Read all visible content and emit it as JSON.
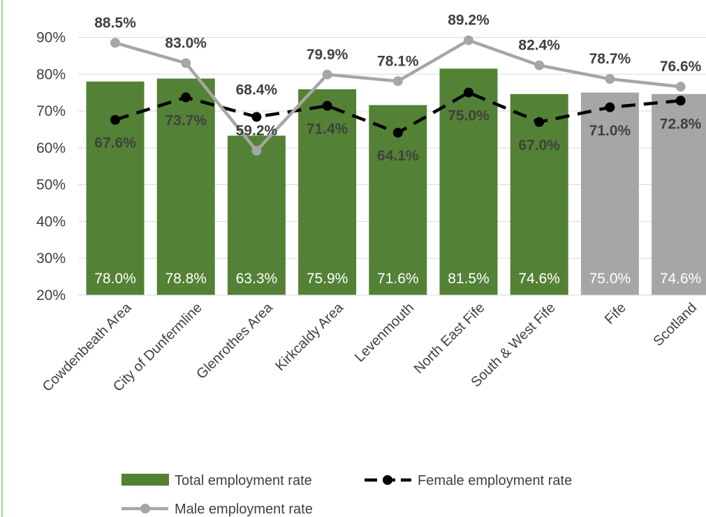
{
  "chart_data": {
    "type": "bar",
    "categories": [
      "Cowdenbeath Area",
      "City of Dunfermline",
      "Glenrothes Area",
      "Kirkcaldy Area",
      "Levenmouth",
      "North East Fife",
      "South & West Fife",
      "Fife",
      "Scotland"
    ],
    "series": [
      {
        "name": "Total employment rate",
        "kind": "bar",
        "values": [
          78.0,
          78.8,
          63.3,
          75.9,
          71.6,
          81.5,
          74.6,
          75.0,
          74.6
        ],
        "labels": [
          "78.0%",
          "78.8%",
          "63.3%",
          "75.9%",
          "71.6%",
          "81.5%",
          "74.6%",
          "75.0%",
          "74.6%"
        ],
        "colors": [
          "#538135",
          "#538135",
          "#538135",
          "#538135",
          "#538135",
          "#538135",
          "#538135",
          "#a6a6a6",
          "#a6a6a6"
        ]
      },
      {
        "name": "Female employment rate",
        "kind": "line",
        "style": "dashed",
        "color": "#000000",
        "values": [
          67.6,
          73.7,
          68.4,
          71.4,
          64.1,
          75.0,
          67.0,
          71.0,
          72.8
        ],
        "labels": [
          "67.6%",
          "73.7%",
          "68.4%",
          "71.4%",
          "64.1%",
          "75.0%",
          "67.0%",
          "71.0%",
          "72.8%"
        ]
      },
      {
        "name": "Male employment rate",
        "kind": "line",
        "style": "solid",
        "color": "#a6a6a6",
        "values": [
          88.5,
          83.0,
          59.2,
          79.9,
          78.1,
          89.2,
          82.4,
          78.7,
          76.6
        ],
        "labels": [
          "88.5%",
          "83.0%",
          "59.2%",
          "79.9%",
          "78.1%",
          "89.2%",
          "82.4%",
          "78.7%",
          "76.6%"
        ]
      }
    ],
    "y_ticks": [
      20,
      30,
      40,
      50,
      60,
      70,
      80,
      90
    ],
    "y_tick_labels": [
      "20%",
      "30%",
      "40%",
      "50%",
      "60%",
      "70%",
      "80%",
      "90%"
    ],
    "ylim": [
      20,
      90
    ],
    "grid": true,
    "legend_position": "bottom",
    "title": "",
    "xlabel": "",
    "ylabel": ""
  },
  "colors": {
    "grid": "#d9d9d9",
    "frame": "#a9d18e",
    "label": "#404040"
  }
}
